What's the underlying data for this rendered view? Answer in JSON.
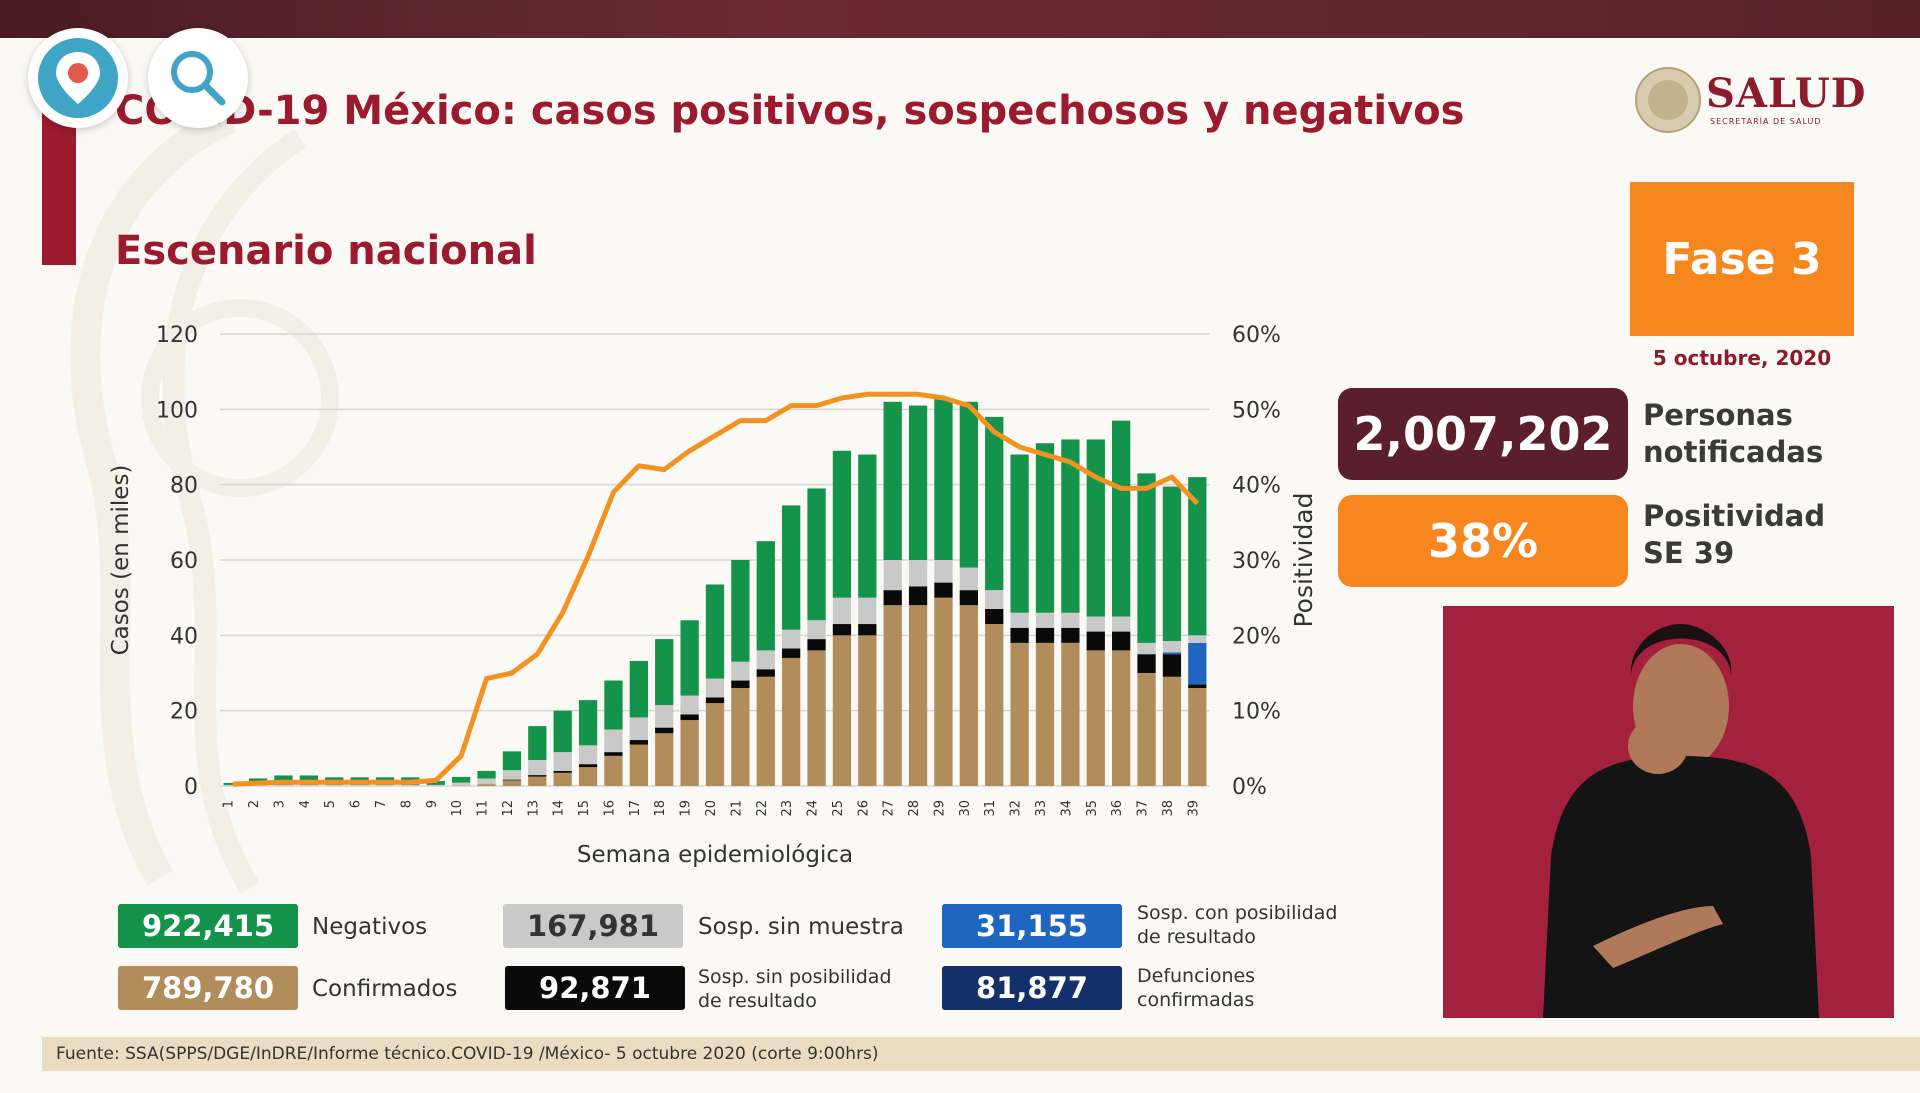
{
  "header": {
    "title": "COVID-19 México: casos positivos, sospechosos y negativos",
    "subtitle": "Escenario nacional"
  },
  "logo": {
    "name": "SALUD",
    "sub": "SECRETARÍA DE SALUD"
  },
  "phase": {
    "label": "Fase 3",
    "date": "5 octubre, 2020"
  },
  "stats": {
    "notified_value": "2,007,202",
    "notified_label_1": "Personas",
    "notified_label_2": "notificadas",
    "positivity_value": "38%",
    "positivity_label_1": "Positividad",
    "positivity_label_2": "SE 39"
  },
  "legend": {
    "negativos_value": "922,415",
    "negativos_label": "Negativos",
    "confirmados_value": "789,780",
    "confirmados_label": "Confirmados",
    "sosp_sin_muestra_value": "167,981",
    "sosp_sin_muestra_label": "Sosp. sin muestra",
    "sosp_sin_pos_value": "92,871",
    "sosp_sin_pos_label_1": "Sosp. sin posibilidad",
    "sosp_sin_pos_label_2": "de resultado",
    "sosp_con_pos_value": "31,155",
    "sosp_con_pos_label_1": "Sosp. con posibilidad",
    "sosp_con_pos_label_2": "de resultado",
    "defunciones_value": "81,877",
    "defunciones_label_1": "Defunciones",
    "defunciones_label_2": "confirmadas"
  },
  "source": "Fuente: SSA(SPPS/DGE/InDRE/Informe técnico.COVID-19 /México- 5 octubre 2020 (corte 9:00hrs)",
  "colors": {
    "negativos": "#14934a",
    "confirmados": "#b08d5b",
    "sosp_sin_muestra": "#c9c9c9",
    "sosp_sin_pos": "#0a0a0a",
    "sosp_con_pos": "#1f66c1",
    "defunciones": "#14306a",
    "positivity_line": "#f39221"
  },
  "chart_data": {
    "type": "bar",
    "stacked": true,
    "xlabel": "Semana epidemiológica",
    "ylabel": "Casos (en miles)",
    "y2label": "Positividad",
    "ylim": [
      0,
      120
    ],
    "y2lim": [
      0,
      60
    ],
    "yticks": [
      0,
      20,
      40,
      60,
      80,
      100,
      120
    ],
    "y2ticks": [
      "0%",
      "10%",
      "20%",
      "30%",
      "40%",
      "50%",
      "60%"
    ],
    "grid": true,
    "categories": [
      "1",
      "2",
      "3",
      "4",
      "5",
      "6",
      "7",
      "8",
      "9",
      "10",
      "11",
      "12",
      "13",
      "14",
      "15",
      "16",
      "17",
      "18",
      "19",
      "20",
      "21",
      "22",
      "23",
      "24",
      "25",
      "26",
      "27",
      "28",
      "29",
      "30",
      "31",
      "32",
      "33",
      "34",
      "35",
      "36",
      "37",
      "38",
      "39"
    ],
    "series": [
      {
        "name": "Confirmados",
        "values": [
          0,
          0,
          0,
          0,
          0,
          0,
          0,
          0,
          0,
          0.1,
          0.5,
          1.5,
          2.5,
          3.5,
          5,
          8,
          11,
          14,
          17.5,
          22,
          26,
          29,
          34,
          36,
          40,
          40,
          48,
          48,
          50,
          48,
          43,
          38,
          38,
          38,
          36,
          36,
          30,
          29,
          26
        ]
      },
      {
        "name": "Sosp. sin posibilidad de resultado",
        "values": [
          0,
          0,
          0,
          0,
          0,
          0,
          0,
          0,
          0,
          0,
          0,
          0.2,
          0.4,
          0.5,
          0.8,
          1,
          1.2,
          1.5,
          1.5,
          1.5,
          2,
          2,
          2.5,
          3,
          3,
          3,
          4,
          5,
          4,
          4,
          4,
          4,
          4,
          4,
          5,
          5,
          5,
          6,
          1
        ]
      },
      {
        "name": "Sosp. con posibilidad de resultado",
        "values": [
          0,
          0,
          0,
          0,
          0,
          0,
          0,
          0,
          0,
          0,
          0,
          0,
          0,
          0,
          0,
          0,
          0,
          0,
          0,
          0,
          0,
          0,
          0,
          0,
          0,
          0,
          0,
          0,
          0,
          0,
          0,
          0,
          0,
          0,
          0,
          0,
          0,
          0.5,
          11
        ]
      },
      {
        "name": "Sosp. sin muestra",
        "values": [
          0.3,
          0.3,
          0.3,
          0.3,
          0.3,
          0.3,
          0.3,
          0.3,
          0.3,
          0.8,
          1.5,
          2.5,
          4,
          5,
          5,
          6,
          6,
          6,
          5,
          5,
          5,
          5,
          5,
          5,
          7,
          7,
          8,
          7,
          6,
          6,
          5,
          4,
          4,
          4,
          4,
          4,
          3,
          3,
          2
        ]
      },
      {
        "name": "Negativos",
        "values": [
          0.5,
          1.7,
          2.5,
          2.5,
          2,
          2,
          2,
          2,
          1,
          1.5,
          2,
          5,
          9,
          11,
          12,
          13,
          15,
          17.5,
          20,
          25,
          27,
          29,
          33,
          35,
          39,
          38,
          42,
          41,
          43,
          44,
          46,
          42,
          45,
          46,
          47,
          52,
          45,
          41,
          42
        ]
      }
    ],
    "positivity": [
      0.5,
      0.8,
      1,
      1,
      1,
      1,
      1,
      1,
      1.5,
      8,
      28.5,
      30,
      35,
      46,
      61,
      78,
      85,
      84,
      89,
      93,
      97,
      97,
      101,
      101,
      103,
      104,
      104,
      104,
      103,
      101,
      94,
      90,
      88,
      86,
      82,
      79,
      79,
      82,
      75
    ],
    "positivity_unit": "scaled to left axis (thousands); 50% = 100"
  }
}
